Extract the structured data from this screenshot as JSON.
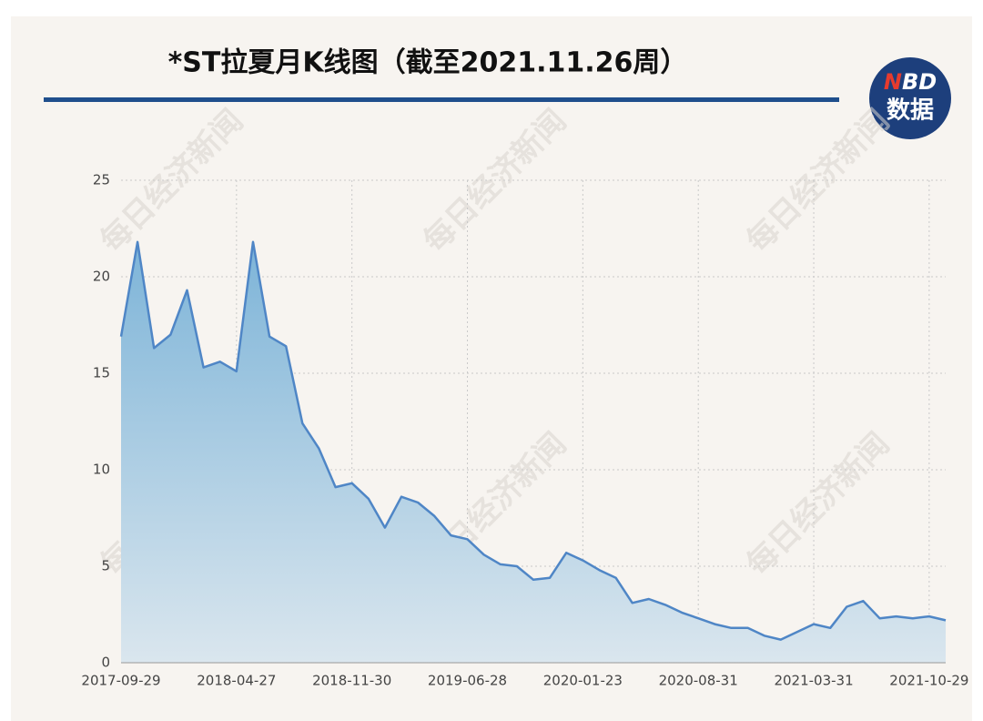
{
  "chart_data": {
    "type": "area",
    "title": "*ST拉夏月K线图（截至2021.11.26周）",
    "watermark": "每日经济新闻",
    "logo": {
      "n": "N",
      "bd": "BD",
      "text": "数据"
    },
    "categories": [
      "2017-09-29",
      null,
      null,
      null,
      null,
      null,
      null,
      "2018-04-27",
      null,
      null,
      null,
      null,
      null,
      null,
      "2018-11-30",
      null,
      null,
      null,
      null,
      null,
      null,
      "2019-06-28",
      null,
      null,
      null,
      null,
      null,
      null,
      "2020-01-23",
      null,
      null,
      null,
      null,
      null,
      null,
      "2020-08-31",
      null,
      null,
      null,
      null,
      null,
      null,
      "2021-03-31",
      null,
      null,
      null,
      null,
      null,
      null,
      "2021-10-29",
      null
    ],
    "values": [
      16.9,
      21.8,
      16.3,
      17.0,
      19.3,
      15.3,
      15.6,
      15.1,
      21.8,
      16.9,
      16.4,
      12.4,
      11.1,
      9.1,
      9.3,
      8.5,
      7.0,
      8.6,
      8.3,
      7.6,
      6.6,
      6.4,
      5.6,
      5.1,
      5.0,
      4.3,
      4.4,
      5.7,
      5.3,
      4.8,
      4.4,
      3.1,
      3.3,
      3.0,
      2.6,
      2.3,
      2.0,
      1.8,
      1.8,
      1.4,
      1.2,
      1.6,
      2.0,
      1.8,
      2.9,
      3.2,
      2.3,
      2.4,
      2.3,
      2.4,
      2.2
    ],
    "color": "#4f86c6",
    "ylim": [
      0,
      25
    ],
    "yticks": [
      0,
      5,
      10,
      15,
      20,
      25
    ],
    "grid": true
  }
}
